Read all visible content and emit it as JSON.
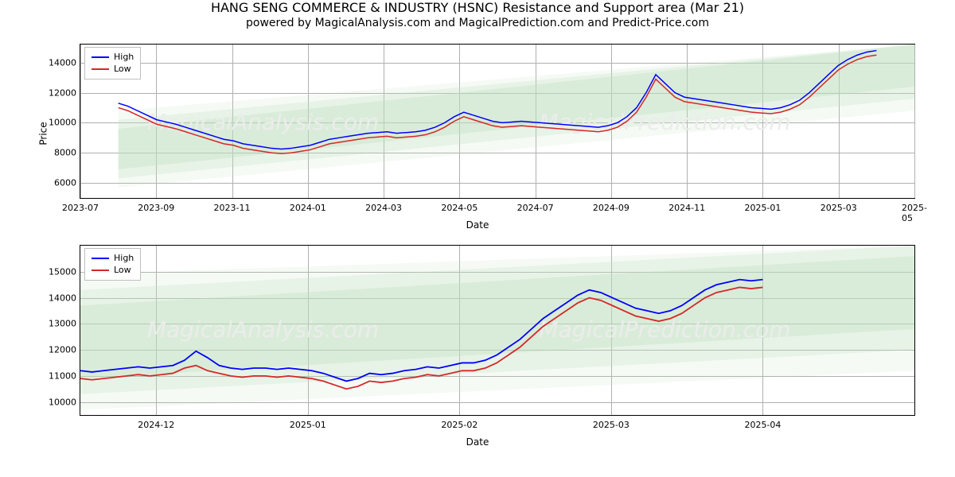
{
  "title": "HANG SENG COMMERCE & INDUSTRY (HSNC) Resistance and Support area (Mar 21)",
  "subtitle": "powered by MagicalAnalysis.com and MagicalPrediction.com and Predict-Price.com",
  "watermark_texts": [
    "MagicalAnalysis.com",
    "MagicalPrediction.com"
  ],
  "watermark_color": "#ececec",
  "legend": {
    "high": "High",
    "low": "Low"
  },
  "colors": {
    "high": "#0000ff",
    "low": "#d62728",
    "grid": "#b0b0b0",
    "border": "#000000",
    "band_base": "#bfe0bf",
    "background": "#ffffff"
  },
  "chart_top": {
    "type": "line",
    "xlabel": "Date",
    "ylabel": "Price",
    "ylim": [
      5000,
      15200
    ],
    "yticks": [
      6000,
      8000,
      10000,
      12000,
      14000
    ],
    "xlim": [
      0,
      22
    ],
    "xtick_positions": [
      0,
      2,
      4,
      6,
      8,
      10,
      12,
      14,
      16,
      18,
      20,
      22
    ],
    "xtick_labels": [
      "2023-07",
      "2023-09",
      "2023-11",
      "2024-01",
      "2024-03",
      "2024-05",
      "2024-07",
      "2024-09",
      "2024-11",
      "2025-01",
      "2025-03",
      "2025-05"
    ],
    "line_width": 1.5,
    "bands": [
      {
        "opacity": 0.35,
        "y0_start": 6900,
        "y1_start": 9600,
        "y0_end": 12400,
        "y1_end": 15200
      },
      {
        "opacity": 0.25,
        "y0_start": 6300,
        "y1_start": 10200,
        "y0_end": 11600,
        "y1_end": 15200
      },
      {
        "opacity": 0.15,
        "y0_start": 5700,
        "y1_start": 10800,
        "y0_end": 10800,
        "y1_end": 15200
      }
    ],
    "band_xstart": 1,
    "band_xend": 22,
    "series_high": [
      11300,
      11100,
      10800,
      10500,
      10200,
      10050,
      9900,
      9700,
      9500,
      9300,
      9100,
      8900,
      8800,
      8600,
      8500,
      8400,
      8300,
      8250,
      8300,
      8400,
      8500,
      8700,
      8900,
      9000,
      9100,
      9200,
      9300,
      9350,
      9400,
      9300,
      9350,
      9400,
      9500,
      9700,
      10000,
      10400,
      10700,
      10500,
      10300,
      10100,
      10000,
      10050,
      10100,
      10050,
      10000,
      9950,
      9900,
      9850,
      9800,
      9750,
      9700,
      9800,
      10000,
      10400,
      11000,
      12000,
      13200,
      12600,
      12000,
      11700,
      11600,
      11500,
      11400,
      11300,
      11200,
      11100,
      11000,
      10950,
      10900,
      11000,
      11200,
      11500,
      12000,
      12600,
      13200,
      13800,
      14200,
      14500,
      14700,
      14800
    ],
    "series_low": [
      11000,
      10800,
      10500,
      10200,
      9900,
      9750,
      9600,
      9400,
      9200,
      9000,
      8800,
      8600,
      8500,
      8300,
      8200,
      8100,
      8000,
      7950,
      8000,
      8100,
      8200,
      8400,
      8600,
      8700,
      8800,
      8900,
      9000,
      9050,
      9100,
      9000,
      9050,
      9100,
      9200,
      9400,
      9700,
      10100,
      10400,
      10200,
      10000,
      9800,
      9700,
      9750,
      9800,
      9750,
      9700,
      9650,
      9600,
      9550,
      9500,
      9450,
      9400,
      9500,
      9700,
      10100,
      10700,
      11700,
      12900,
      12300,
      11700,
      11400,
      11300,
      11200,
      11100,
      11000,
      10900,
      10800,
      10700,
      10650,
      10600,
      10700,
      10900,
      11200,
      11700,
      12300,
      12900,
      13500,
      13900,
      14200,
      14400,
      14500
    ]
  },
  "chart_bottom": {
    "type": "line",
    "xlabel": "Date",
    "ylabel": "",
    "ylim": [
      9500,
      16000
    ],
    "yticks": [
      10000,
      11000,
      12000,
      13000,
      14000,
      15000
    ],
    "xlim": [
      0,
      5.5
    ],
    "xtick_positions": [
      0.5,
      1.5,
      2.5,
      3.5,
      4.5
    ],
    "xtick_labels": [
      "2024-12",
      "2025-01",
      "2025-02",
      "2025-03",
      "2025-04"
    ],
    "line_width": 1.8,
    "bands": [
      {
        "opacity": 0.35,
        "y0_start": 10900,
        "y1_start": 13700,
        "y0_end": 12800,
        "y1_end": 15600
      },
      {
        "opacity": 0.25,
        "y0_start": 10300,
        "y1_start": 14300,
        "y0_end": 12000,
        "y1_end": 16000
      },
      {
        "opacity": 0.15,
        "y0_start": 9700,
        "y1_start": 14900,
        "y0_end": 11200,
        "y1_end": 16000
      }
    ],
    "band_xstart": 0,
    "band_xend": 5.5,
    "series_high": [
      11200,
      11150,
      11200,
      11250,
      11300,
      11350,
      11300,
      11350,
      11400,
      11600,
      11950,
      11700,
      11400,
      11300,
      11250,
      11300,
      11300,
      11250,
      11300,
      11250,
      11200,
      11100,
      10950,
      10800,
      10900,
      11100,
      11050,
      11100,
      11200,
      11250,
      11350,
      11300,
      11400,
      11500,
      11500,
      11600,
      11800,
      12100,
      12400,
      12800,
      13200,
      13500,
      13800,
      14100,
      14300,
      14200,
      14000,
      13800,
      13600,
      13500,
      13400,
      13500,
      13700,
      14000,
      14300,
      14500,
      14600,
      14700,
      14650,
      14700
    ],
    "series_low": [
      10900,
      10850,
      10900,
      10950,
      11000,
      11050,
      11000,
      11050,
      11100,
      11300,
      11400,
      11200,
      11100,
      11000,
      10950,
      11000,
      11000,
      10950,
      11000,
      10950,
      10900,
      10800,
      10650,
      10500,
      10600,
      10800,
      10750,
      10800,
      10900,
      10950,
      11050,
      11000,
      11100,
      11200,
      11200,
      11300,
      11500,
      11800,
      12100,
      12500,
      12900,
      13200,
      13500,
      13800,
      14000,
      13900,
      13700,
      13500,
      13300,
      13200,
      13100,
      13200,
      13400,
      13700,
      14000,
      14200,
      14300,
      14400,
      14350,
      14400
    ]
  }
}
